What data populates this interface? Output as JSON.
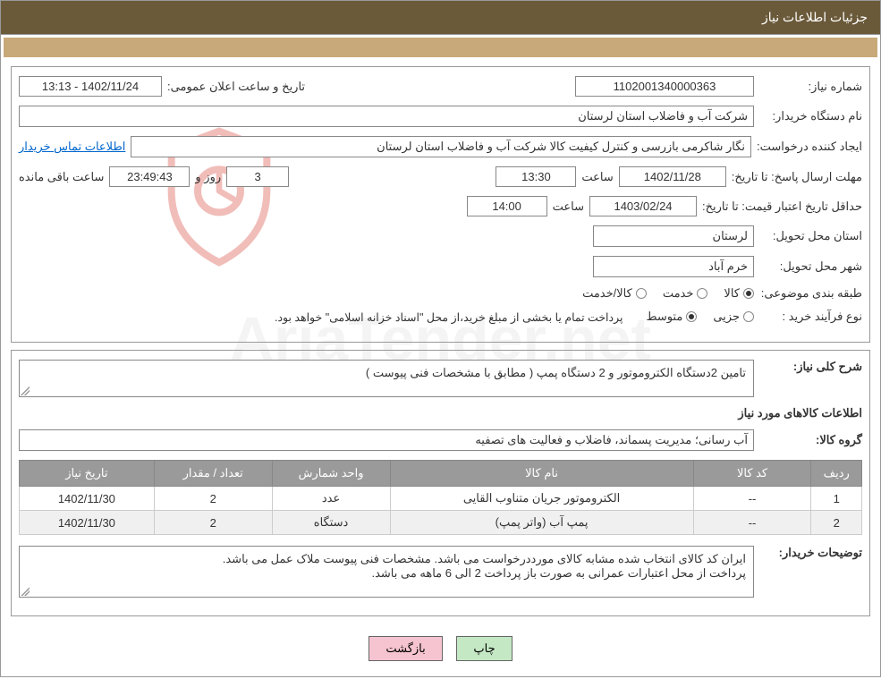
{
  "header": {
    "title": "جزئیات اطلاعات نیاز"
  },
  "watermark_text": "AriaTender.net",
  "form": {
    "need_number_label": "شماره نیاز:",
    "need_number": "1102001340000363",
    "announce_datetime_label": "تاریخ و ساعت اعلان عمومی:",
    "announce_datetime": "1402/11/24 - 13:13",
    "buyer_label": "نام دستگاه خریدار:",
    "buyer_name": "شرکت آب و فاضلاب استان لرستان",
    "requester_label": "ایجاد کننده درخواست:",
    "requester_name": "نگار شاکرمی بازرسی و کنترل کیفیت کالا شرکت آب و فاضلاب استان لرستان",
    "buyer_contact_link": "اطلاعات تماس خریدار",
    "reply_deadline_label": "مهلت ارسال پاسخ: تا تاریخ:",
    "reply_deadline_date": "1402/11/28",
    "time_label": "ساعت",
    "reply_deadline_time": "13:30",
    "day_label": "روز و",
    "remaining_days": "3",
    "remaining_time": "23:49:43",
    "remaining_suffix": "ساعت باقی مانده",
    "price_validity_label": "حداقل تاریخ اعتبار قیمت: تا تاریخ:",
    "price_validity_date": "1403/02/24",
    "price_validity_time": "14:00",
    "delivery_province_label": "استان محل تحویل:",
    "delivery_province": "لرستان",
    "delivery_city_label": "شهر محل تحویل:",
    "delivery_city": "خرم آباد",
    "category_label": "طبقه بندی موضوعی:",
    "category_options": {
      "goods": "کالا",
      "service": "خدمت",
      "goods_service": "کالا/خدمت"
    },
    "category_selected": "goods",
    "purchase_type_label": "نوع فرآیند خرید :",
    "purchase_options": {
      "minor": "جزیی",
      "medium": "متوسط"
    },
    "purchase_selected": "medium",
    "purchase_note": "پرداخت تمام یا بخشی از مبلغ خرید،از محل \"اسناد خزانه اسلامی\" خواهد بود."
  },
  "need": {
    "summary_label": "شرح کلی نیاز:",
    "summary": "تامین 2دستگاه الکتروموتور و 2 دستگاه پمپ ( مطابق با مشخصات فنی پیوست )",
    "goods_info_title": "اطلاعات کالاهای مورد نیاز",
    "goods_group_label": "گروه کالا:",
    "goods_group": "آب رسانی؛ مدیریت پسماند، فاضلاب و فعالیت های تصفیه"
  },
  "table": {
    "columns": [
      "ردیف",
      "کد کالا",
      "نام کالا",
      "واحد شمارش",
      "تعداد / مقدار",
      "تاریخ نیاز"
    ],
    "col_widths": [
      "6%",
      "14%",
      "36%",
      "14%",
      "14%",
      "16%"
    ],
    "rows": [
      [
        "1",
        "--",
        "الکتروموتور جریان متناوب القایی",
        "عدد",
        "2",
        "1402/11/30"
      ],
      [
        "2",
        "--",
        "پمپ آب (واتر پمپ)",
        "دستگاه",
        "2",
        "1402/11/30"
      ]
    ]
  },
  "buyer_notes": {
    "label": "توضیحات خریدار:",
    "line1": "ایران کد کالای انتخاب شده مشابه کالای مورددرخواست می باشد. مشخصات فنی پیوست ملاک عمل می باشد.",
    "line2": "پرداخت از محل اعتبارات عمرانی به صورت باز پرداخت 2 الی 6 ماهه می باشد."
  },
  "buttons": {
    "print": "چاپ",
    "back": "بازگشت"
  },
  "colors": {
    "header_bg": "#6b5a3a",
    "tan_bar": "#c8a97a",
    "table_header": "#9a9a9a",
    "btn_print": "#c4e8c4",
    "btn_back": "#f5c4d0",
    "border": "#999999",
    "link": "#0066cc",
    "watermark": "#e8e8e8",
    "shield_stroke": "#d9443a"
  }
}
